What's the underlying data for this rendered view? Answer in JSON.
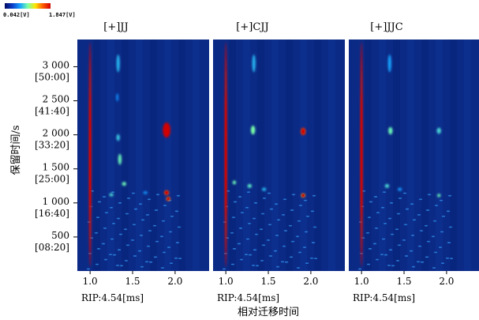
{
  "chart_data": {
    "type": "heatmap",
    "colorbar": {
      "min_label": "0.042[V]",
      "max_label": "1.847[V]",
      "min": 0.042,
      "max": 1.847,
      "colors": [
        "#000a5c",
        "#0a3cc8",
        "#14a0ff",
        "#78ffaa",
        "#ffe600",
        "#ff5a00",
        "#d20000"
      ]
    },
    "ylabel": "保留时间/s",
    "xlabel": "相对迁移时间",
    "ylim": [
      0,
      3400
    ],
    "yticks": [
      {
        "value": 3000,
        "label": "3 000",
        "sub": "[50:00]"
      },
      {
        "value": 2500,
        "label": "2 500",
        "sub": "[41:40]"
      },
      {
        "value": 2000,
        "label": "2 000",
        "sub": "[33:20]"
      },
      {
        "value": 1500,
        "label": "1 500",
        "sub": "[25:00]"
      },
      {
        "value": 1000,
        "label": "1 000",
        "sub": "[16:40]"
      },
      {
        "value": 500,
        "label": "500",
        "sub": "[08:20]"
      }
    ],
    "xlim": [
      0.85,
      2.4
    ],
    "xticks": [
      1.0,
      1.5,
      2.0
    ],
    "xtick_labels": [
      "1.0",
      "1.5",
      "2.0"
    ],
    "panels": [
      {
        "title": "[+]JJ",
        "rip_label": "RIP:4.54[ms]",
        "peaks": [
          {
            "x": 1.0,
            "y": 1710,
            "w": 0.03,
            "h": 3300,
            "intensity": 1.8
          },
          {
            "x": 1.33,
            "y": 3050,
            "w": 0.04,
            "h": 260,
            "intensity": 0.7
          },
          {
            "x": 1.32,
            "y": 2550,
            "w": 0.03,
            "h": 120,
            "intensity": 0.55
          },
          {
            "x": 1.9,
            "y": 2070,
            "w": 0.09,
            "h": 220,
            "intensity": 1.84
          },
          {
            "x": 1.9,
            "y": 1150,
            "w": 0.06,
            "h": 70,
            "intensity": 1.65
          },
          {
            "x": 1.92,
            "y": 1060,
            "w": 0.05,
            "h": 60,
            "intensity": 1.55
          },
          {
            "x": 1.33,
            "y": 1960,
            "w": 0.04,
            "h": 100,
            "intensity": 0.75
          },
          {
            "x": 1.35,
            "y": 1640,
            "w": 0.04,
            "h": 160,
            "intensity": 0.9
          },
          {
            "x": 1.4,
            "y": 1280,
            "w": 0.05,
            "h": 60,
            "intensity": 0.9
          },
          {
            "x": 1.25,
            "y": 1120,
            "w": 0.05,
            "h": 50,
            "intensity": 0.8
          },
          {
            "x": 1.65,
            "y": 1150,
            "w": 0.05,
            "h": 45,
            "intensity": 0.6
          }
        ]
      },
      {
        "title": "[+]CJJ",
        "rip_label": "RIP:4.54[ms]",
        "peaks": [
          {
            "x": 1.0,
            "y": 1710,
            "w": 0.03,
            "h": 3300,
            "intensity": 1.8
          },
          {
            "x": 1.33,
            "y": 3050,
            "w": 0.04,
            "h": 260,
            "intensity": 0.7
          },
          {
            "x": 1.32,
            "y": 2070,
            "w": 0.05,
            "h": 130,
            "intensity": 0.95
          },
          {
            "x": 1.91,
            "y": 2050,
            "w": 0.06,
            "h": 110,
            "intensity": 1.7
          },
          {
            "x": 1.91,
            "y": 1110,
            "w": 0.05,
            "h": 60,
            "intensity": 1.5
          },
          {
            "x": 1.28,
            "y": 1250,
            "w": 0.05,
            "h": 60,
            "intensity": 0.85
          },
          {
            "x": 1.45,
            "y": 1200,
            "w": 0.05,
            "h": 50,
            "intensity": 0.7
          },
          {
            "x": 1.1,
            "y": 1300,
            "w": 0.04,
            "h": 60,
            "intensity": 0.9
          }
        ]
      },
      {
        "title": "[+]JJC",
        "rip_label": "RIP:4.54[ms]",
        "peaks": [
          {
            "x": 1.0,
            "y": 1710,
            "w": 0.03,
            "h": 3300,
            "intensity": 1.8
          },
          {
            "x": 1.33,
            "y": 3050,
            "w": 0.04,
            "h": 260,
            "intensity": 0.65
          },
          {
            "x": 1.34,
            "y": 2060,
            "w": 0.05,
            "h": 110,
            "intensity": 0.9
          },
          {
            "x": 1.91,
            "y": 2060,
            "w": 0.05,
            "h": 90,
            "intensity": 0.8
          },
          {
            "x": 1.91,
            "y": 1110,
            "w": 0.04,
            "h": 50,
            "intensity": 0.9
          },
          {
            "x": 1.3,
            "y": 1250,
            "w": 0.05,
            "h": 60,
            "intensity": 0.8
          },
          {
            "x": 1.45,
            "y": 1200,
            "w": 0.05,
            "h": 50,
            "intensity": 0.6
          }
        ]
      }
    ]
  }
}
